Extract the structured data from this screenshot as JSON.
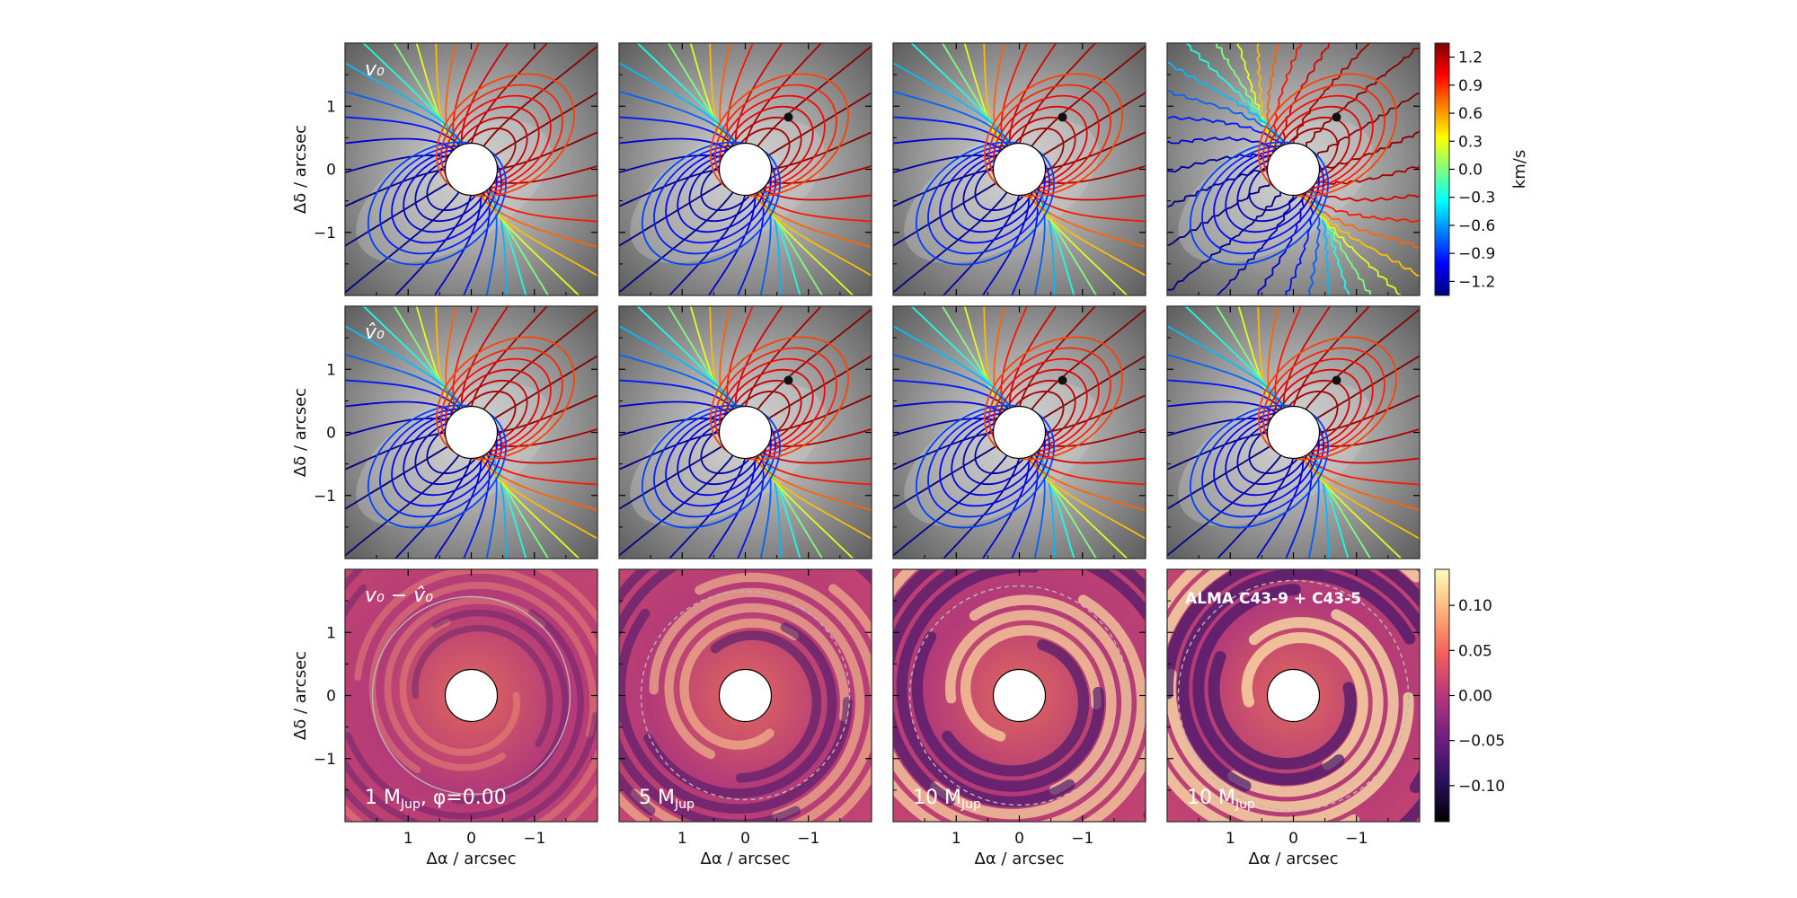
{
  "figure": {
    "ylabel": "Δδ / arcsec",
    "xlabel": "Δα / arcsec"
  },
  "chart_data": {
    "type": "heatmap",
    "rows": [
      {
        "label": "v_0",
        "label_display": "v₀",
        "kind": "velocity"
      },
      {
        "label": "v̂_0",
        "label_display": "v̂₀",
        "kind": "velocity-model"
      },
      {
        "label": "v_0 − v̂_0",
        "label_display": "v₀ − v̂₀",
        "kind": "residual"
      }
    ],
    "columns": [
      {
        "caption": "1 MJup, φ=0.00",
        "mass_mjup": 1,
        "phi": "0.00"
      },
      {
        "caption": "5 MJup",
        "mass_mjup": 5
      },
      {
        "caption": "10 MJup",
        "mass_mjup": 10
      },
      {
        "caption": "10 MJup",
        "mass_mjup": 10,
        "panel_title": "ALMA C43-9 + C43-5"
      }
    ],
    "column_captions_display": [
      "1 M",
      "5 M",
      "10 M",
      "10 M"
    ],
    "caption_subscript": "Jup",
    "caption_suffix": ", φ=0.00",
    "x_ticks": [
      "1",
      "0",
      "−1"
    ],
    "y_ticks": [
      "1",
      "0",
      "−1"
    ],
    "axis_range_arcsec": [
      -2,
      2
    ],
    "velocity_colorbar": {
      "label": "km/s",
      "ticks": [
        "1.2",
        "0.9",
        "0.6",
        "0.3",
        "0.0",
        "−0.3",
        "−0.6",
        "−0.9",
        "−1.2"
      ],
      "values": [
        1.2,
        0.9,
        0.6,
        0.3,
        0.0,
        -0.3,
        -0.6,
        -0.9,
        -1.2
      ],
      "range": [
        -1.35,
        1.35
      ],
      "colormap": "jet"
    },
    "residual_colorbar": {
      "ticks": [
        "0.10",
        "0.05",
        "0.00",
        "−0.05",
        "−0.10"
      ],
      "values": [
        0.1,
        0.05,
        0.0,
        -0.05,
        -0.1
      ],
      "range": [
        -0.14,
        0.14
      ],
      "colormap": "magma"
    },
    "colors": {
      "background_gray": "#7a7a7a",
      "jet": [
        "#00007f",
        "#0000ff",
        "#007fff",
        "#00ffff",
        "#7fff7f",
        "#ffff00",
        "#ff7f00",
        "#ff0000",
        "#7f0000"
      ],
      "magma": [
        "#000004",
        "#2c115f",
        "#721f81",
        "#b73779",
        "#f1605d",
        "#feb078",
        "#fcfdbf"
      ],
      "residual_contour": "#b8b8b8"
    }
  }
}
